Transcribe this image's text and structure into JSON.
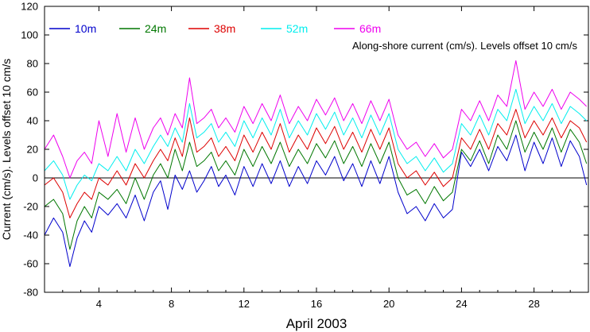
{
  "chart_data": {
    "type": "line",
    "xlabel": "April 2003",
    "ylabel": "Current (cm/s). Levels offset 10 cm/s",
    "annotation": "Along-shore current (cm/s). Levels offset 10 cm/s",
    "xlim": [
      1,
      31
    ],
    "ylim": [
      -80,
      120
    ],
    "x_ticks": [
      4,
      8,
      12,
      16,
      20,
      24,
      28
    ],
    "y_ticks": [
      -80,
      -60,
      -40,
      -20,
      0,
      20,
      40,
      60,
      80,
      100,
      120
    ],
    "zero_line": 0,
    "legend_position": "top-left",
    "series": [
      {
        "name": "10m",
        "color": "#0000cc",
        "offset": 0,
        "x": [
          1.0,
          1.5,
          2.0,
          2.4,
          2.8,
          3.2,
          3.6,
          4.0,
          4.5,
          5.0,
          5.5,
          6.0,
          6.5,
          7.0,
          7.4,
          7.8,
          8.2,
          8.6,
          9.0,
          9.4,
          9.8,
          10.2,
          10.6,
          11.0,
          11.5,
          12.0,
          12.5,
          13.0,
          13.5,
          14.0,
          14.5,
          15.0,
          15.5,
          16.0,
          16.5,
          17.0,
          17.5,
          18.0,
          18.5,
          19.0,
          19.5,
          20.0,
          20.5,
          21.0,
          21.5,
          22.0,
          22.5,
          23.0,
          23.5,
          24.0,
          24.5,
          25.0,
          25.5,
          26.0,
          26.5,
          27.0,
          27.5,
          28.0,
          28.5,
          29.0,
          29.5,
          30.0,
          30.5,
          30.9
        ],
        "values": [
          -40,
          -28,
          -38,
          -62,
          -42,
          -30,
          -38,
          -20,
          -26,
          -18,
          -28,
          -12,
          -30,
          -10,
          -2,
          -22,
          2,
          -8,
          5,
          -10,
          -2,
          8,
          -6,
          2,
          -12,
          8,
          -6,
          10,
          -4,
          12,
          -6,
          8,
          -4,
          12,
          2,
          15,
          -2,
          10,
          -6,
          12,
          -4,
          15,
          -10,
          -25,
          -20,
          -30,
          -18,
          -28,
          -22,
          18,
          8,
          20,
          5,
          22,
          12,
          30,
          5,
          25,
          10,
          28,
          8,
          26,
          15,
          -5
        ]
      },
      {
        "name": "24m",
        "color": "#007700",
        "offset": 0,
        "x": [
          1.0,
          1.5,
          2.0,
          2.4,
          2.8,
          3.2,
          3.6,
          4.0,
          4.5,
          5.0,
          5.5,
          6.0,
          6.5,
          7.0,
          7.4,
          7.8,
          8.2,
          8.6,
          9.0,
          9.4,
          9.8,
          10.2,
          10.6,
          11.0,
          11.5,
          12.0,
          12.5,
          13.0,
          13.5,
          14.0,
          14.5,
          15.0,
          15.5,
          16.0,
          16.5,
          17.0,
          17.5,
          18.0,
          18.5,
          19.0,
          19.5,
          20.0,
          20.5,
          21.0,
          21.5,
          22.0,
          22.5,
          23.0,
          23.5,
          24.0,
          24.5,
          25.0,
          25.5,
          26.0,
          26.5,
          27.0,
          27.5,
          28.0,
          28.5,
          29.0,
          29.5,
          30.0,
          30.5,
          30.9
        ],
        "values": [
          -20,
          -15,
          -25,
          -50,
          -30,
          -20,
          -28,
          -10,
          -15,
          -8,
          -18,
          0,
          -15,
          2,
          10,
          0,
          20,
          5,
          25,
          8,
          12,
          18,
          5,
          12,
          2,
          20,
          8,
          22,
          10,
          25,
          8,
          20,
          10,
          24,
          14,
          26,
          10,
          22,
          8,
          24,
          10,
          25,
          0,
          -12,
          -8,
          -18,
          -6,
          -16,
          -10,
          20,
          12,
          26,
          10,
          30,
          20,
          40,
          18,
          32,
          20,
          35,
          18,
          34,
          25,
          10
        ]
      },
      {
        "name": "38m",
        "color": "#dd0000",
        "offset": 0,
        "x": [
          1.0,
          1.5,
          2.0,
          2.4,
          2.8,
          3.2,
          3.6,
          4.0,
          4.5,
          5.0,
          5.5,
          6.0,
          6.5,
          7.0,
          7.4,
          7.8,
          8.2,
          8.6,
          9.0,
          9.4,
          9.8,
          10.2,
          10.6,
          11.0,
          11.5,
          12.0,
          12.5,
          13.0,
          13.5,
          14.0,
          14.5,
          15.0,
          15.5,
          16.0,
          16.5,
          17.0,
          17.5,
          18.0,
          18.5,
          19.0,
          19.5,
          20.0,
          20.5,
          21.0,
          21.5,
          22.0,
          22.5,
          23.0,
          23.5,
          24.0,
          24.5,
          25.0,
          25.5,
          26.0,
          26.5,
          27.0,
          27.5,
          28.0,
          28.5,
          29.0,
          29.5,
          30.0,
          30.5,
          30.9
        ],
        "values": [
          -5,
          0,
          -10,
          -28,
          -18,
          -10,
          -15,
          0,
          -5,
          5,
          -5,
          10,
          0,
          12,
          20,
          12,
          28,
          15,
          42,
          18,
          22,
          28,
          15,
          22,
          12,
          30,
          18,
          32,
          20,
          38,
          18,
          30,
          20,
          35,
          24,
          36,
          20,
          32,
          18,
          34,
          20,
          35,
          10,
          0,
          5,
          -5,
          4,
          -6,
          0,
          28,
          20,
          34,
          20,
          38,
          30,
          48,
          28,
          40,
          30,
          42,
          28,
          40,
          35,
          25
        ]
      },
      {
        "name": "52m",
        "color": "#00eeee",
        "offset": 0,
        "x": [
          1.0,
          1.5,
          2.0,
          2.4,
          2.8,
          3.2,
          3.6,
          4.0,
          4.5,
          5.0,
          5.5,
          6.0,
          6.5,
          7.0,
          7.4,
          7.8,
          8.2,
          8.6,
          9.0,
          9.4,
          9.8,
          10.2,
          10.6,
          11.0,
          11.5,
          12.0,
          12.5,
          13.0,
          13.5,
          14.0,
          14.5,
          15.0,
          15.5,
          16.0,
          16.5,
          17.0,
          17.5,
          18.0,
          18.5,
          19.0,
          19.5,
          20.0,
          20.5,
          21.0,
          21.5,
          22.0,
          22.5,
          23.0,
          23.5,
          24.0,
          24.5,
          25.0,
          25.5,
          26.0,
          26.5,
          27.0,
          27.5,
          28.0,
          28.5,
          29.0,
          29.5,
          30.0,
          30.5,
          30.9
        ],
        "values": [
          5,
          12,
          2,
          -15,
          -5,
          2,
          -2,
          10,
          5,
          15,
          5,
          20,
          10,
          22,
          30,
          22,
          35,
          25,
          52,
          28,
          32,
          38,
          25,
          32,
          22,
          40,
          28,
          42,
          30,
          48,
          28,
          40,
          30,
          45,
          34,
          46,
          30,
          42,
          28,
          44,
          30,
          45,
          20,
          10,
          15,
          5,
          14,
          4,
          10,
          38,
          30,
          44,
          30,
          48,
          40,
          62,
          38,
          50,
          40,
          52,
          38,
          50,
          45,
          40
        ]
      },
      {
        "name": "66m",
        "color": "#ee00ee",
        "offset": 0,
        "x": [
          1.0,
          1.5,
          2.0,
          2.4,
          2.8,
          3.2,
          3.6,
          4.0,
          4.5,
          5.0,
          5.5,
          6.0,
          6.5,
          7.0,
          7.4,
          7.8,
          8.2,
          8.6,
          9.0,
          9.4,
          9.8,
          10.2,
          10.6,
          11.0,
          11.5,
          12.0,
          12.5,
          13.0,
          13.5,
          14.0,
          14.5,
          15.0,
          15.5,
          16.0,
          16.5,
          17.0,
          17.5,
          18.0,
          18.5,
          19.0,
          19.5,
          20.0,
          20.5,
          21.0,
          21.5,
          22.0,
          22.5,
          23.0,
          23.5,
          24.0,
          24.5,
          25.0,
          25.5,
          26.0,
          26.5,
          27.0,
          27.5,
          28.0,
          28.5,
          29.0,
          29.5,
          30.0,
          30.5,
          30.9
        ],
        "values": [
          20,
          30,
          15,
          0,
          12,
          18,
          10,
          40,
          15,
          45,
          18,
          42,
          20,
          35,
          42,
          30,
          45,
          35,
          70,
          38,
          42,
          48,
          35,
          42,
          32,
          50,
          38,
          52,
          40,
          58,
          38,
          50,
          40,
          55,
          44,
          56,
          40,
          52,
          38,
          54,
          40,
          55,
          30,
          20,
          25,
          15,
          24,
          14,
          20,
          48,
          40,
          54,
          40,
          58,
          50,
          82,
          48,
          60,
          50,
          62,
          48,
          60,
          55,
          50
        ]
      }
    ]
  }
}
